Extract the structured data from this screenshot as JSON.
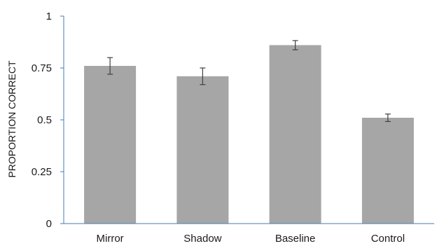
{
  "chart_data": {
    "type": "bar",
    "title": "",
    "xlabel": "",
    "ylabel": "PROPORTION CORRECT",
    "categories": [
      "Mirror",
      "Shadow",
      "Baseline",
      "Control"
    ],
    "values": [
      0.76,
      0.71,
      0.86,
      0.51
    ],
    "error_bars": [
      0.04,
      0.04,
      0.022,
      0.018
    ],
    "ylim": [
      0,
      1
    ],
    "yticks": [
      0,
      0.25,
      0.5,
      0.75,
      1
    ],
    "ytick_labels": [
      "0",
      "0.25",
      "0.5",
      "0.75",
      "1"
    ],
    "grid": false,
    "legend": "none",
    "colors": {
      "bar": "#a6a6a6",
      "axis": "#4a7ab5",
      "error_bar": "#404040",
      "text": "#1a1a1a"
    }
  }
}
